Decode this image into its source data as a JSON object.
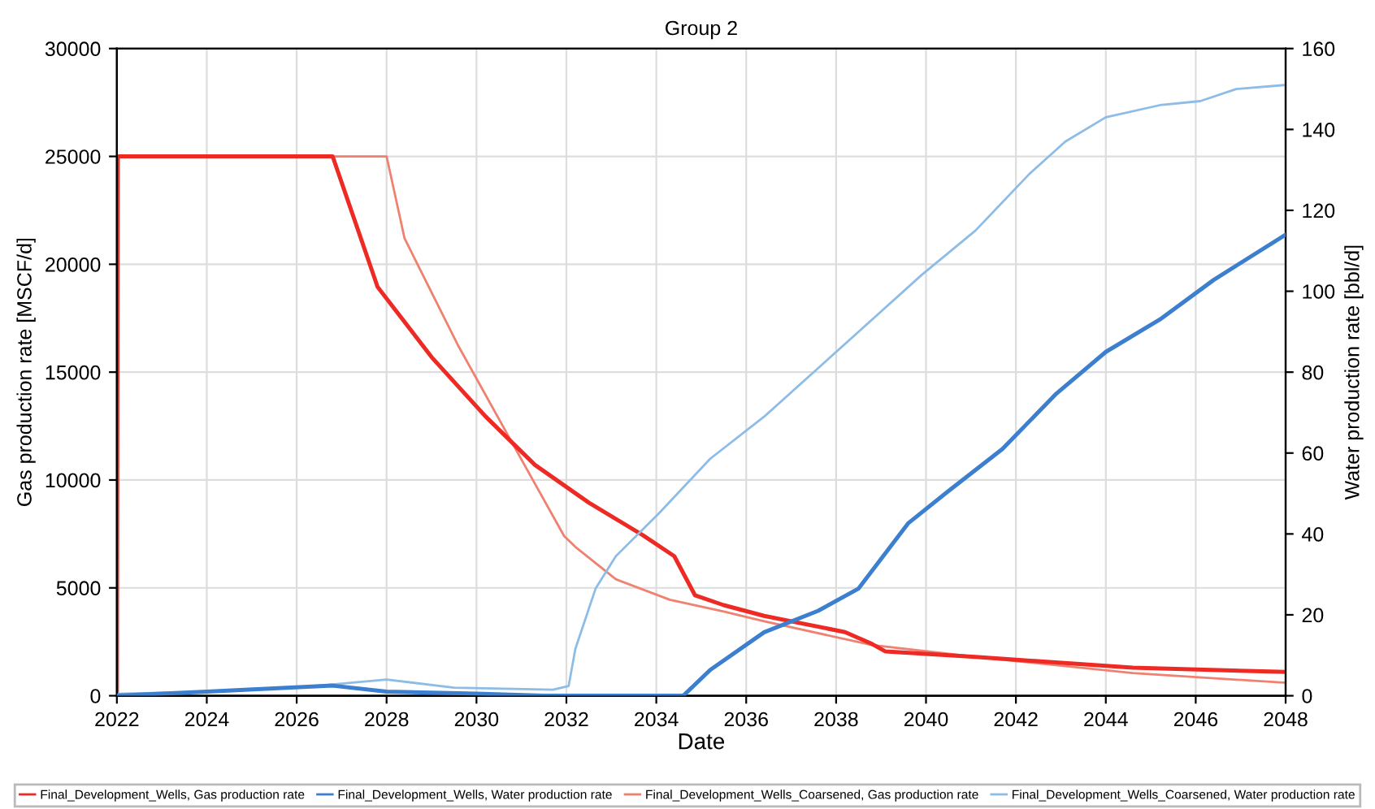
{
  "chart_data": {
    "type": "line",
    "title": "Group 2",
    "xlabel": "Date",
    "ylabel": "Gas production rate [MSCF/d]",
    "y2label": "Water production rate [bbl/d]",
    "xlim": [
      2022,
      2048
    ],
    "xticks": [
      2022,
      2024,
      2026,
      2028,
      2030,
      2032,
      2034,
      2036,
      2038,
      2040,
      2042,
      2044,
      2046,
      2048
    ],
    "ylim": [
      0,
      30000
    ],
    "yticks": [
      0,
      5000,
      10000,
      15000,
      20000,
      25000,
      30000
    ],
    "y2lim": [
      0,
      160
    ],
    "y2ticks": [
      0,
      20,
      40,
      60,
      80,
      100,
      120,
      140,
      160
    ],
    "grid": true,
    "legend": "bottom",
    "marker": "none",
    "line_style": "solid",
    "series": [
      {
        "name": "Final_Development_Wells, Gas production rate",
        "color": "#ee2a24",
        "x": [
          2022,
          2022.02,
          2026.8,
          2027.8,
          2029.0,
          2030.2,
          2031.3,
          2032.5,
          2033.7,
          2034.4,
          2034.86,
          2035.5,
          2036.4,
          2038.2,
          2038.8,
          2039.1,
          2041.1,
          2044.6,
          2048
        ],
        "values": [
          0,
          25000,
          25000,
          18950,
          15700,
          12950,
          10700,
          8950,
          7440,
          6470,
          4660,
          4200,
          3700,
          2950,
          2400,
          2050,
          1800,
          1300,
          1100
        ]
      },
      {
        "name": "Final_Development_Wells, Water production rate",
        "color": "#3c7fcf",
        "axis": "y2",
        "x": [
          2022,
          2024,
          2026.8,
          2028,
          2030,
          2031.5,
          2034.6,
          2035.2,
          2036.4,
          2037.6,
          2038.5,
          2039.6,
          2040.5,
          2041.7,
          2042.9,
          2044.0,
          2045.2,
          2046.4,
          2048
        ],
        "values": [
          0,
          1,
          2.5,
          1,
          0.5,
          0,
          0,
          6.4,
          15.7,
          21,
          26.5,
          42.6,
          50.6,
          61,
          74.7,
          85,
          93,
          102.8,
          114
        ]
      },
      {
        "name": "Final_Development_Wells_Coarsened, Gas production rate",
        "color": "#f08070",
        "x": [
          2022,
          2022.02,
          2028.0,
          2028.4,
          2029.6,
          2030.8,
          2031.95,
          2032.2,
          2033.1,
          2034.3,
          2035.5,
          2036.4,
          2038.8,
          2041.1,
          2044.6,
          2048
        ],
        "values": [
          0,
          25000,
          25000,
          21200,
          16200,
          11700,
          7400,
          6900,
          5400,
          4450,
          3900,
          3450,
          2350,
          1800,
          1050,
          600
        ]
      },
      {
        "name": "Final_Development_Wells_Coarsened, Water production rate",
        "color": "#8dbce6",
        "axis": "y2",
        "x": [
          2022,
          2024,
          2026,
          2028,
          2029.5,
          2031.7,
          2032.05,
          2032.2,
          2032.65,
          2033.1,
          2034.05,
          2035.2,
          2036.4,
          2037.6,
          2038.8,
          2039.9,
          2041.1,
          2042.3,
          2043.1,
          2044.0,
          2045.2,
          2046.1,
          2046.9,
          2048
        ],
        "values": [
          0.5,
          1,
          2,
          4,
          2,
          1.5,
          2.4,
          11.6,
          26.5,
          34.5,
          45,
          58.6,
          69,
          81,
          93,
          104,
          115,
          129,
          137,
          143,
          146,
          147,
          150,
          151
        ]
      }
    ]
  }
}
